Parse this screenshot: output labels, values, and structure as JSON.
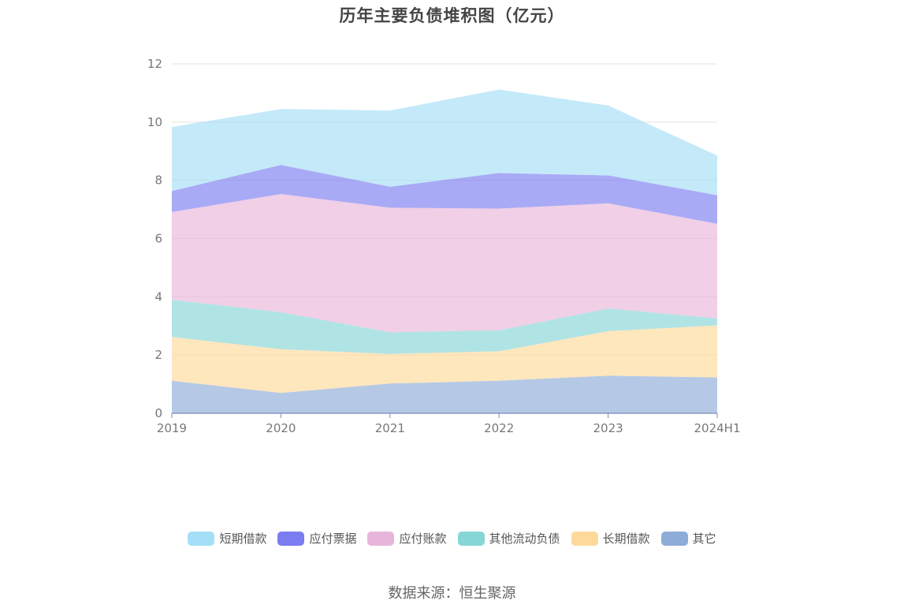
{
  "chart_data": {
    "type": "area",
    "stacked": true,
    "title": "历年主要负债堆积图（亿元）",
    "xlabel": "",
    "ylabel": "",
    "categories": [
      "2019",
      "2020",
      "2021",
      "2022",
      "2023",
      "2024H1"
    ],
    "ylim": [
      0,
      12
    ],
    "yticks": [
      0,
      2,
      4,
      6,
      8,
      10,
      12
    ],
    "grid": true,
    "legend_position": "bottom",
    "series": [
      {
        "name": "其它",
        "color": "#8eacd8",
        "values": [
          1.12,
          0.7,
          1.02,
          1.12,
          1.29,
          1.23
        ]
      },
      {
        "name": "长期借款",
        "color": "#fdd99a",
        "values": [
          1.5,
          1.5,
          1.02,
          1.01,
          1.53,
          1.79
        ]
      },
      {
        "name": "其他流动负债",
        "color": "#86d6d6",
        "values": [
          1.28,
          1.27,
          0.74,
          0.72,
          0.78,
          0.24
        ]
      },
      {
        "name": "应付账款",
        "color": "#e8b5da",
        "values": [
          3.01,
          4.06,
          4.28,
          4.18,
          3.61,
          3.25
        ]
      },
      {
        "name": "应付票据",
        "color": "#7b7cf0",
        "values": [
          0.72,
          1.0,
          0.72,
          1.22,
          0.96,
          0.98
        ]
      },
      {
        "name": "短期借款",
        "color": "#a4dff7",
        "values": [
          2.2,
          1.92,
          2.62,
          2.87,
          2.4,
          1.36
        ]
      }
    ]
  },
  "legend_order": [
    "短期借款",
    "应付票据",
    "应付账款",
    "其他流动负债",
    "长期借款",
    "其它"
  ],
  "source": "数据来源：恒生聚源"
}
